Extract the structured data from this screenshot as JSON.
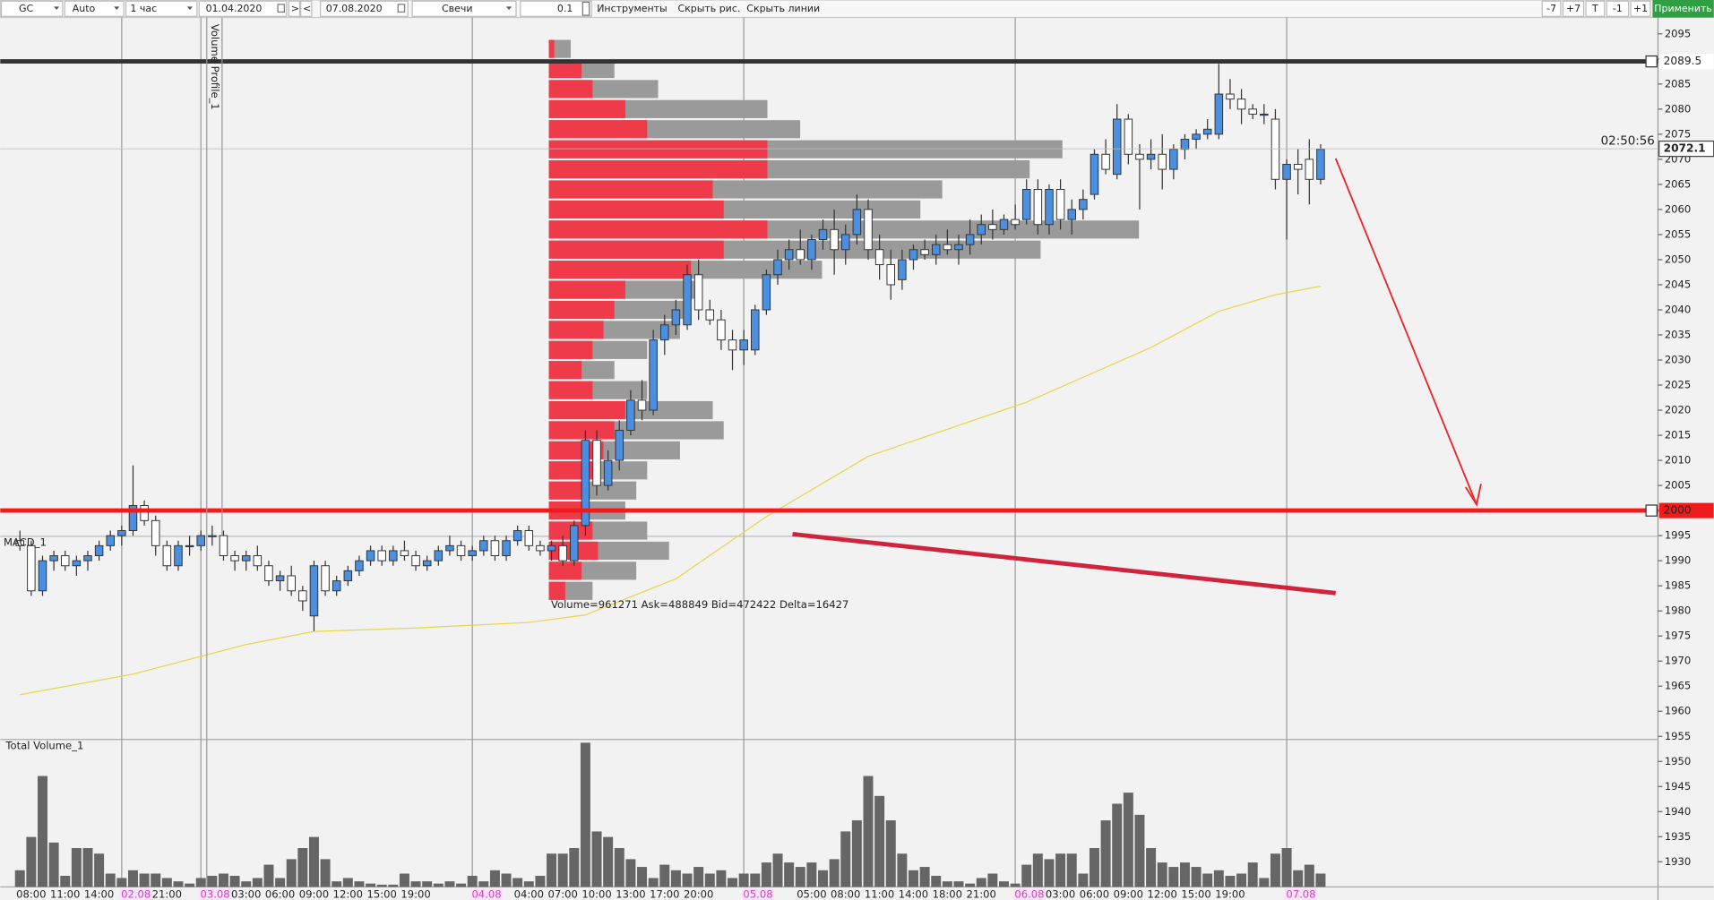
{
  "toolbar": {
    "symbol": "GC",
    "scale": "Auto",
    "timeframe": "1 час",
    "date_from": "01.04.2020",
    "next": ">",
    "prev": "<",
    "date_to": "07.08.2020",
    "chart_style": "Свечи",
    "step": "0.1",
    "tools": "Инструменты",
    "hide_drawings": "Скрыть рис.",
    "hide_lines": "Скрыть линии",
    "zoom_buttons": [
      "-7",
      "+7",
      "T",
      "-1",
      "+1"
    ],
    "apply": "Применить"
  },
  "chart_data": {
    "type": "candlestick",
    "indicators": {
      "volume_profile": "Volume Profile_1",
      "macd": "MACD_1",
      "total_volume": "Total Volume_1"
    },
    "profile_caption": "Volume=961271  Ask=488849  Bid=472422  Delta=16427",
    "timer": "02:50:56",
    "current_price": 2072.1,
    "levels": [
      {
        "value": 2089.5,
        "color": "#333333"
      },
      {
        "value": 2000,
        "color": "#ee1c1c"
      }
    ],
    "ylim": [
      1925,
      2097
    ],
    "yticks": [
      1930,
      1935,
      1940,
      1945,
      1950,
      1955,
      1960,
      1965,
      1970,
      1975,
      1980,
      1985,
      1990,
      1995,
      2000,
      2005,
      2010,
      2015,
      2020,
      2025,
      2030,
      2035,
      2040,
      2045,
      2050,
      2055,
      2060,
      2065,
      2070,
      2075,
      2080,
      2085,
      2090,
      2095
    ],
    "up_color": "#4a8fe0",
    "down_color": "#ffffff",
    "volume_color": "#666666",
    "categories": [
      null,
      "08:00",
      null,
      null,
      "11:00",
      null,
      null,
      "14:00",
      null,
      "02.08",
      null,
      null,
      null,
      "21:00",
      null,
      null,
      "03.08",
      null,
      null,
      null,
      "03:00",
      null,
      null,
      "06:00",
      null,
      null,
      "09:00",
      null,
      null,
      "12:00",
      null,
      null,
      "15:00",
      null,
      null,
      "19:00",
      null,
      null,
      null,
      null,
      "04.08",
      null,
      null,
      null,
      null,
      "04:00",
      null,
      null,
      "07:00",
      null,
      null,
      "10:00",
      null,
      null,
      "13:00",
      null,
      null,
      "17:00",
      null,
      null,
      "20:00",
      null,
      null,
      null,
      "05.08",
      null,
      null,
      null,
      null,
      null,
      "05:00",
      null,
      null,
      "08:00",
      null,
      null,
      "11:00",
      null,
      null,
      "14:00",
      null,
      null,
      "18:00",
      null,
      null,
      "21:00",
      null,
      null,
      "06.08",
      null,
      null,
      null,
      "03:00",
      null,
      null,
      "06:00",
      null,
      null,
      "09:00",
      null,
      null,
      "12:00",
      null,
      null,
      "15:00",
      null,
      null,
      "19:00",
      null,
      null,
      null,
      null,
      "07.08",
      null,
      null,
      null
    ],
    "ohlc": [
      [
        1994,
        1996,
        1992,
        1993
      ],
      [
        1993,
        1994,
        1983,
        1984
      ],
      [
        1984,
        1991,
        1983,
        1990
      ],
      [
        1990,
        1992,
        1988,
        1991
      ],
      [
        1991,
        1992,
        1988,
        1989
      ],
      [
        1989,
        1991,
        1987,
        1990
      ],
      [
        1990,
        1992,
        1988,
        1991
      ],
      [
        1991,
        1994,
        1990,
        1993
      ],
      [
        1993,
        1996,
        1992,
        1995
      ],
      [
        1995,
        1997,
        1993,
        1996
      ],
      [
        1996,
        2009,
        1995,
        2001
      ],
      [
        2001,
        2002,
        1997,
        1998
      ],
      [
        1998,
        1999,
        1991,
        1993
      ],
      [
        1993,
        1994,
        1988,
        1989
      ],
      [
        1989,
        1994,
        1988,
        1993
      ],
      [
        1993,
        1995,
        1991,
        1993
      ],
      [
        1993,
        1996,
        1992,
        1995
      ],
      [
        1995,
        1997,
        1993,
        1995
      ],
      [
        1995,
        1996,
        1990,
        1991
      ],
      [
        1991,
        1992,
        1988,
        1990
      ],
      [
        1990,
        1992,
        1988,
        1991
      ],
      [
        1991,
        1993,
        1988,
        1989
      ],
      [
        1989,
        1990,
        1985,
        1986
      ],
      [
        1986,
        1988,
        1984,
        1987
      ],
      [
        1987,
        1989,
        1983,
        1984
      ],
      [
        1984,
        1985,
        1980,
        1982
      ],
      [
        1979,
        1990,
        1976,
        1989
      ],
      [
        1989,
        1990,
        1983,
        1984
      ],
      [
        1984,
        1987,
        1983,
        1986
      ],
      [
        1986,
        1989,
        1985,
        1988
      ],
      [
        1988,
        1991,
        1987,
        1990
      ],
      [
        1990,
        1993,
        1989,
        1992
      ],
      [
        1992,
        1993,
        1989,
        1990
      ],
      [
        1990,
        1993,
        1989,
        1992
      ],
      [
        1992,
        1994,
        1990,
        1991
      ],
      [
        1991,
        1992,
        1988,
        1989
      ],
      [
        1989,
        1991,
        1988,
        1990
      ],
      [
        1990,
        1993,
        1989,
        1992
      ],
      [
        1992,
        1995,
        1991,
        1993
      ],
      [
        1993,
        1994,
        1990,
        1991
      ],
      [
        1991,
        1993,
        1990,
        1992
      ],
      [
        1992,
        1995,
        1991,
        1994
      ],
      [
        1994,
        1995,
        1990,
        1991
      ],
      [
        1991,
        1995,
        1990,
        1994
      ],
      [
        1994,
        1997,
        1993,
        1996
      ],
      [
        1996,
        1997,
        1992,
        1993
      ],
      [
        1993,
        1994,
        1991,
        1992
      ],
      [
        1992,
        1994,
        1990,
        1993
      ],
      [
        1993,
        1995,
        1989,
        1990
      ],
      [
        1990,
        1998,
        1989,
        1997
      ],
      [
        1997,
        2016,
        1995,
        2014
      ],
      [
        2014,
        2016,
        2003,
        2005
      ],
      [
        2005,
        2012,
        2004,
        2010
      ],
      [
        2010,
        2018,
        2008,
        2016
      ],
      [
        2016,
        2024,
        2015,
        2022
      ],
      [
        2022,
        2026,
        2018,
        2020
      ],
      [
        2020,
        2036,
        2019,
        2034
      ],
      [
        2034,
        2039,
        2031,
        2037
      ],
      [
        2037,
        2042,
        2035,
        2040
      ],
      [
        2037,
        2049,
        2036,
        2047
      ],
      [
        2047,
        2050,
        2038,
        2040
      ],
      [
        2040,
        2042,
        2037,
        2038
      ],
      [
        2038,
        2040,
        2032,
        2034
      ],
      [
        2034,
        2036,
        2028,
        2032
      ],
      [
        2032,
        2036,
        2029,
        2034
      ],
      [
        2032,
        2041,
        2031,
        2040
      ],
      [
        2040,
        2048,
        2039,
        2047
      ],
      [
        2047,
        2052,
        2045,
        2050
      ],
      [
        2050,
        2054,
        2048,
        2052
      ],
      [
        2052,
        2056,
        2049,
        2050
      ],
      [
        2050,
        2055,
        2048,
        2054
      ],
      [
        2054,
        2058,
        2052,
        2056
      ],
      [
        2056,
        2060,
        2047,
        2052
      ],
      [
        2052,
        2057,
        2049,
        2055
      ],
      [
        2055,
        2063,
        2053,
        2060
      ],
      [
        2060,
        2062,
        2050,
        2052
      ],
      [
        2052,
        2055,
        2046,
        2049
      ],
      [
        2049,
        2052,
        2042,
        2045
      ],
      [
        2046,
        2052,
        2044,
        2050
      ],
      [
        2050,
        2053,
        2048,
        2052
      ],
      [
        2052,
        2054,
        2050,
        2051
      ],
      [
        2051,
        2055,
        2049,
        2053
      ],
      [
        2053,
        2056,
        2051,
        2052
      ],
      [
        2052,
        2055,
        2049,
        2053
      ],
      [
        2053,
        2058,
        2051,
        2055
      ],
      [
        2055,
        2059,
        2053,
        2057
      ],
      [
        2057,
        2060,
        2054,
        2056
      ],
      [
        2056,
        2059,
        2055,
        2058
      ],
      [
        2058,
        2061,
        2056,
        2057
      ],
      [
        2058,
        2066,
        2057,
        2064
      ],
      [
        2064,
        2066,
        2055,
        2057
      ],
      [
        2057,
        2065,
        2055,
        2064
      ],
      [
        2064,
        2066,
        2056,
        2058
      ],
      [
        2058,
        2062,
        2055,
        2060
      ],
      [
        2060,
        2064,
        2058,
        2062
      ],
      [
        2063,
        2072,
        2062,
        2071
      ],
      [
        2071,
        2074,
        2067,
        2068
      ],
      [
        2067,
        2081,
        2066,
        2078
      ],
      [
        2078,
        2079,
        2069,
        2071
      ],
      [
        2071,
        2073,
        2060,
        2070
      ],
      [
        2070,
        2074,
        2068,
        2071
      ],
      [
        2071,
        2075,
        2064,
        2068
      ],
      [
        2068,
        2073,
        2066,
        2072
      ],
      [
        2072,
        2075,
        2070,
        2074
      ],
      [
        2074,
        2076,
        2072,
        2075
      ],
      [
        2075,
        2078,
        2074,
        2076
      ],
      [
        2075,
        2089,
        2074,
        2083
      ],
      [
        2083,
        2086,
        2080,
        2082
      ],
      [
        2082,
        2084,
        2077,
        2080
      ],
      [
        2080,
        2081,
        2078,
        2079
      ],
      [
        2079,
        2081,
        2077,
        2079
      ],
      [
        2078,
        2080,
        2064,
        2066
      ],
      [
        2066,
        2070,
        2054,
        2069
      ],
      [
        2069,
        2072,
        2063,
        2068
      ],
      [
        2070,
        2074,
        2061,
        2066
      ],
      [
        2066,
        2073,
        2065,
        2072
      ]
    ],
    "volume": [
      15,
      45,
      100,
      40,
      10,
      35,
      35,
      30,
      12,
      8,
      15,
      12,
      12,
      8,
      5,
      3,
      8,
      10,
      12,
      10,
      5,
      8,
      20,
      8,
      25,
      35,
      45,
      25,
      5,
      8,
      5,
      3,
      2,
      2,
      12,
      5,
      5,
      3,
      5,
      3,
      10,
      5,
      15,
      12,
      8,
      5,
      10,
      30,
      30,
      35,
      130,
      50,
      45,
      35,
      25,
      18,
      8,
      20,
      15,
      12,
      18,
      12,
      15,
      8,
      12,
      12,
      22,
      30,
      22,
      18,
      22,
      15,
      25,
      50,
      60,
      100,
      82,
      60,
      30,
      15,
      18,
      10,
      5,
      5,
      3,
      8,
      12,
      5,
      3,
      20,
      30,
      25,
      30,
      30,
      12,
      35,
      60,
      75,
      85,
      65,
      35,
      22,
      18,
      22,
      18,
      12,
      15,
      10,
      12,
      22,
      8,
      30,
      35,
      15,
      20,
      12
    ],
    "moving_average": {
      "color": "#e8d44a",
      "index": [
        0,
        10,
        20,
        26,
        35,
        45,
        50,
        58,
        66,
        75,
        89,
        100,
        106,
        111,
        115
      ],
      "values": [
        1963.3,
        1967.4,
        1973.3,
        1975.9,
        1976.6,
        1977.7,
        1979.2,
        1986.4,
        1998.8,
        2010.8,
        2021.6,
        2032.5,
        2039.7,
        2043.0,
        2044.7
      ]
    },
    "volume_profile": {
      "prices": [
        2092,
        2088,
        2084,
        2080,
        2076,
        2072,
        2068,
        2064,
        2060,
        2056,
        2052,
        2048,
        2044,
        2040,
        2036,
        2032,
        2028,
        2024,
        2020,
        2016,
        2012,
        2008,
        2004,
        2000,
        1996,
        1992,
        1988,
        1984
      ],
      "total": [
        20,
        60,
        100,
        200,
        230,
        470,
        440,
        360,
        340,
        540,
        450,
        250,
        140,
        130,
        120,
        90,
        60,
        90,
        150,
        160,
        120,
        90,
        80,
        70,
        90,
        110,
        80,
        40
      ],
      "bid": [
        5,
        30,
        40,
        70,
        90,
        200,
        200,
        150,
        160,
        200,
        160,
        130,
        70,
        60,
        50,
        40,
        30,
        40,
        70,
        60,
        50,
        40,
        35,
        30,
        40,
        45,
        30,
        15
      ]
    }
  }
}
